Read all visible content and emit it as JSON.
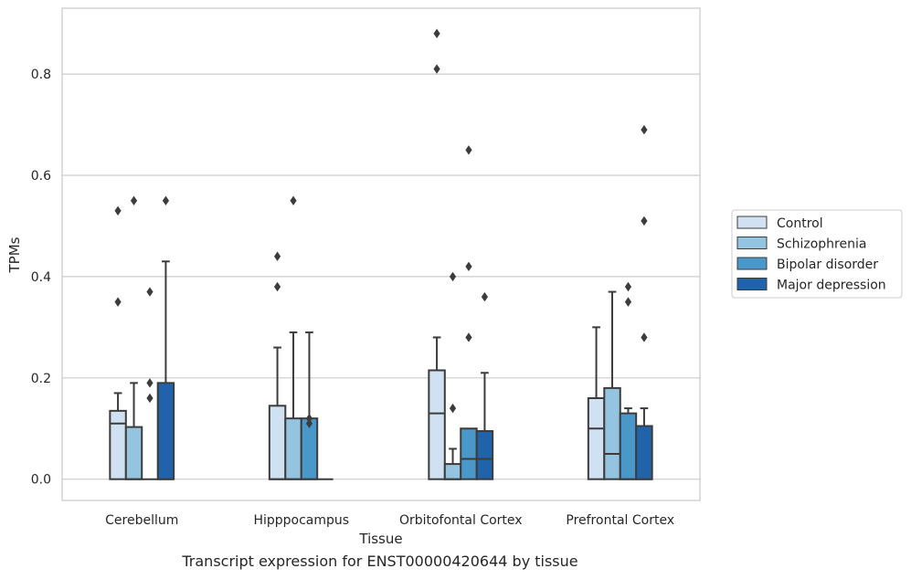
{
  "caption": "Transcript expression for ENST00000420644 by tissue",
  "chart_data": {
    "type": "box",
    "title": "",
    "xlabel": "Tissue",
    "ylabel": "TPMs",
    "ylim": [
      -0.042,
      0.93
    ],
    "yticks": [
      0.0,
      0.2,
      0.4,
      0.6,
      0.8
    ],
    "grid": "horizontal",
    "legend_position": "right",
    "categories": [
      "Cerebellum",
      "Hipppocampus",
      "Orbitofontal Cortex",
      "Prefrontal Cortex"
    ],
    "series": [
      {
        "name": "Control",
        "color": "#d0e1f2",
        "boxes": [
          {
            "min": 0.0,
            "q1": 0.0,
            "median": 0.11,
            "q3": 0.135,
            "max": 0.17,
            "outliers": [
              0.35,
              0.53
            ]
          },
          {
            "min": 0.0,
            "q1": 0.0,
            "median": 0.0,
            "q3": 0.145,
            "max": 0.26,
            "outliers": [
              0.38,
              0.44
            ]
          },
          {
            "min": 0.0,
            "q1": 0.0,
            "median": 0.13,
            "q3": 0.215,
            "max": 0.28,
            "outliers": [
              0.81,
              0.88
            ]
          },
          {
            "min": 0.0,
            "q1": 0.0,
            "median": 0.1,
            "q3": 0.16,
            "max": 0.3,
            "outliers": []
          }
        ]
      },
      {
        "name": "Schizophrenia",
        "color": "#94c4df",
        "boxes": [
          {
            "min": 0.0,
            "q1": 0.0,
            "median": 0.0,
            "q3": 0.103,
            "max": 0.19,
            "outliers": [
              0.55
            ]
          },
          {
            "min": 0.0,
            "q1": 0.0,
            "median": 0.0,
            "q3": 0.12,
            "max": 0.29,
            "outliers": [
              0.55
            ]
          },
          {
            "min": 0.0,
            "q1": 0.0,
            "median": 0.0,
            "q3": 0.03,
            "max": 0.06,
            "outliers": [
              0.14,
              0.4
            ]
          },
          {
            "min": 0.0,
            "q1": 0.0,
            "median": 0.05,
            "q3": 0.18,
            "max": 0.37,
            "outliers": []
          }
        ]
      },
      {
        "name": "Bipolar disorder",
        "color": "#4a98c9",
        "boxes": [
          {
            "min": 0.0,
            "q1": 0.0,
            "median": 0.0,
            "q3": 0.0,
            "max": 0.0,
            "outliers": [
              0.16,
              0.19,
              0.37
            ]
          },
          {
            "min": 0.0,
            "q1": 0.0,
            "median": 0.0,
            "q3": 0.12,
            "max": 0.29,
            "outliers": [
              0.11,
              0.12
            ]
          },
          {
            "min": 0.0,
            "q1": 0.0,
            "median": 0.04,
            "q3": 0.1,
            "max": 0.1,
            "outliers": [
              0.28,
              0.42,
              0.65
            ]
          },
          {
            "min": 0.0,
            "q1": 0.0,
            "median": 0.0,
            "q3": 0.13,
            "max": 0.14,
            "outliers": [
              0.35,
              0.38
            ]
          }
        ]
      },
      {
        "name": "Major depression",
        "color": "#2163aa",
        "boxes": [
          {
            "min": 0.0,
            "q1": 0.0,
            "median": 0.0,
            "q3": 0.19,
            "max": 0.43,
            "outliers": [
              0.55
            ]
          },
          {
            "min": 0.0,
            "q1": 0.0,
            "median": 0.0,
            "q3": 0.0,
            "max": 0.0,
            "outliers": []
          },
          {
            "min": 0.0,
            "q1": 0.0,
            "median": 0.04,
            "q3": 0.095,
            "max": 0.21,
            "outliers": [
              0.36
            ]
          },
          {
            "min": 0.0,
            "q1": 0.0,
            "median": 0.0,
            "q3": 0.105,
            "max": 0.14,
            "outliers": [
              0.28,
              0.51,
              0.69
            ]
          }
        ]
      }
    ]
  }
}
